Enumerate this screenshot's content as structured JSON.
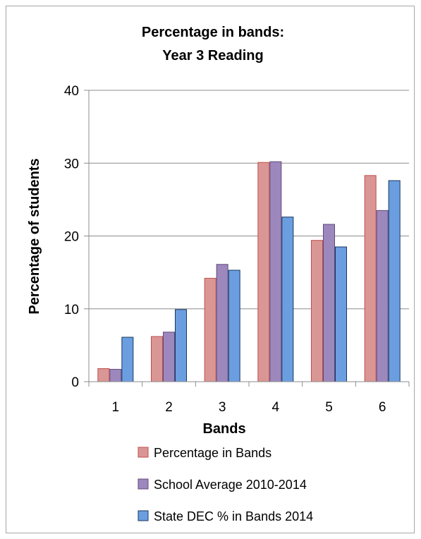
{
  "chart_data": {
    "type": "bar",
    "title_lines": [
      "Percentage in bands:",
      "Year 3 Reading"
    ],
    "xlabel": "Bands",
    "ylabel": "Percentage of students",
    "categories": [
      "1",
      "2",
      "3",
      "4",
      "5",
      "6"
    ],
    "ylim": [
      0,
      40
    ],
    "yticks": [
      "0",
      "10",
      "20",
      "30",
      "40"
    ],
    "grid": true,
    "legend_position": "bottom",
    "series": [
      {
        "name": "Percentage in Bands",
        "color": "#c0504d",
        "fill": "#d99694",
        "values": [
          1.8,
          6.2,
          14.2,
          30.1,
          19.4,
          28.3
        ]
      },
      {
        "name": "School Average 2010-2014",
        "color": "#604a7b",
        "fill": "#9c88bd",
        "values": [
          1.7,
          6.8,
          16.1,
          30.2,
          21.6,
          23.5
        ]
      },
      {
        "name": "State DEC % in Bands 2014",
        "color": "#17375e",
        "fill": "#6b9ee0",
        "values": [
          6.1,
          9.9,
          15.3,
          22.6,
          18.5,
          27.6
        ]
      }
    ]
  }
}
